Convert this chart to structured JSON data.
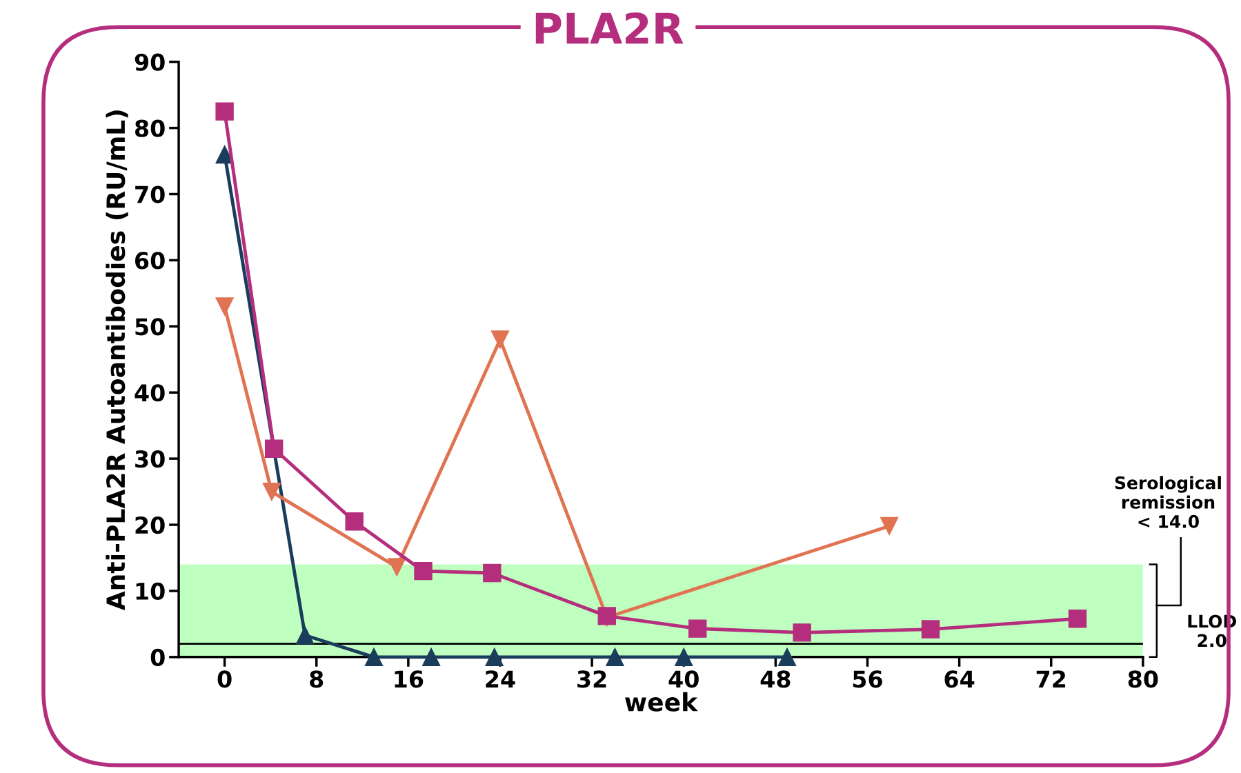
{
  "chart_data": {
    "type": "line",
    "title": "PLA2R",
    "xlabel": "week",
    "ylabel": "Anti-PLA2R Autoantibodies (RU/mL)",
    "series": [
      {
        "color": "#b52e7d",
        "marker": "square",
        "x": [
          0,
          4.3,
          11.3,
          17.3,
          23.3,
          33.3,
          41.2,
          50.3,
          61.5,
          74.3
        ],
        "values": [
          82.5,
          31.5,
          20.5,
          13.0,
          12.7,
          6.2,
          4.3,
          3.7,
          4.2,
          5.8
        ]
      },
      {
        "color": "#e07352",
        "marker": "triangle_down",
        "x": [
          0,
          4.1,
          15,
          24,
          33.3,
          57.9
        ],
        "values": [
          53,
          25,
          13.6,
          48,
          6,
          19.8
        ]
      },
      {
        "color": "#1b3d5c",
        "marker": "triangle",
        "x": [
          0,
          7,
          13,
          18,
          23.5,
          34,
          40,
          49
        ],
        "values": [
          76,
          3.3,
          0,
          0,
          0,
          0,
          0,
          0
        ]
      }
    ],
    "xlim": [
      -4,
      80
    ],
    "xticks": [
      0,
      8,
      16,
      24,
      32,
      40,
      48,
      56,
      64,
      72,
      80
    ],
    "ylim": [
      0,
      90
    ],
    "yticks": [
      0,
      10,
      20,
      30,
      40,
      50,
      60,
      70,
      80,
      90
    ],
    "bands": [
      {
        "axis": "y",
        "from": 0,
        "to": 14,
        "label": "Serological\nremission\n< 14.0",
        "color": "#bfffbf"
      }
    ],
    "ref_lines": [
      {
        "axis": "y",
        "value": 2,
        "label": "LLOD\n2.0",
        "color": "#000000",
        "line_style": "solid"
      }
    ],
    "grid": false,
    "line_style": "solid"
  }
}
